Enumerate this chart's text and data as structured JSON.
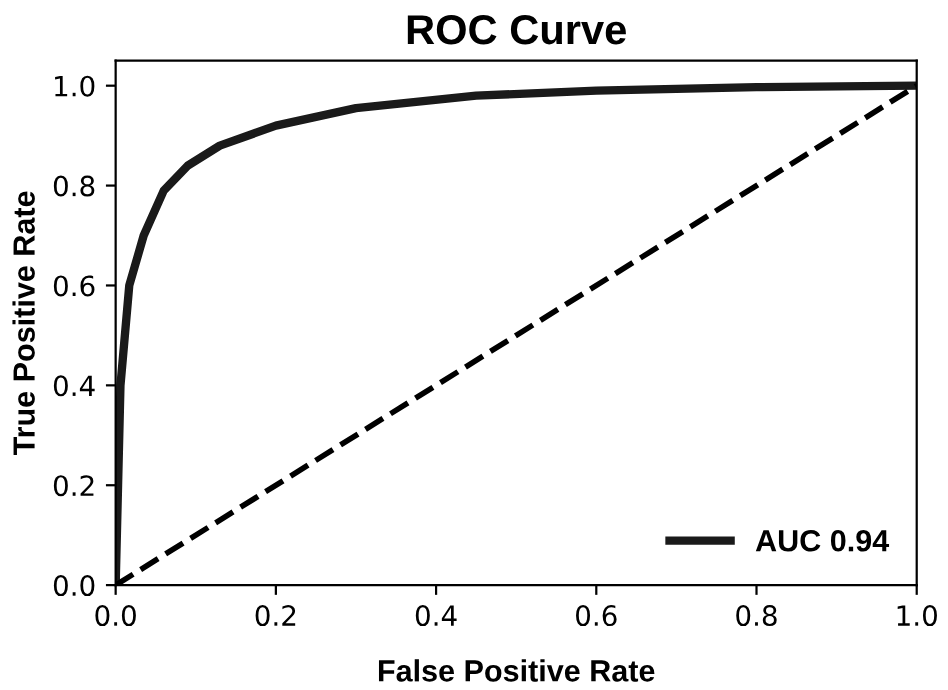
{
  "chart_data": {
    "type": "line",
    "title": "ROC Curve",
    "xlabel": "False Positive Rate",
    "ylabel": "True Positive Rate",
    "series": [
      {
        "name": "AUC 0.94",
        "color": "#1a1a1a",
        "line_style": "solid",
        "x": [
          0,
          0.003,
          0.006,
          0.017,
          0.035,
          0.06,
          0.09,
          0.13,
          0.2,
          0.3,
          0.45,
          0.6,
          0.8,
          1.0
        ],
        "values": [
          0,
          0.2,
          0.4,
          0.6,
          0.7,
          0.79,
          0.84,
          0.88,
          0.92,
          0.955,
          0.98,
          0.99,
          0.997,
          1.0
        ]
      },
      {
        "color": "#000000",
        "line_style": "dashed",
        "x": [
          0,
          1
        ],
        "values": [
          0,
          1
        ]
      }
    ],
    "xlim": [
      0,
      1
    ],
    "ylim": [
      0,
      1.05
    ],
    "xticks": [
      {
        "value": 0,
        "label": "0.0"
      },
      0.2,
      0.4,
      0.6,
      0.8,
      {
        "value": 1,
        "label": "1.0"
      }
    ],
    "yticks": [
      {
        "value": 0,
        "label": "0.0"
      },
      0.2,
      0.4,
      0.6,
      0.8,
      {
        "value": 1,
        "label": "1.0"
      }
    ],
    "grid": false,
    "legend": "bottom right"
  }
}
